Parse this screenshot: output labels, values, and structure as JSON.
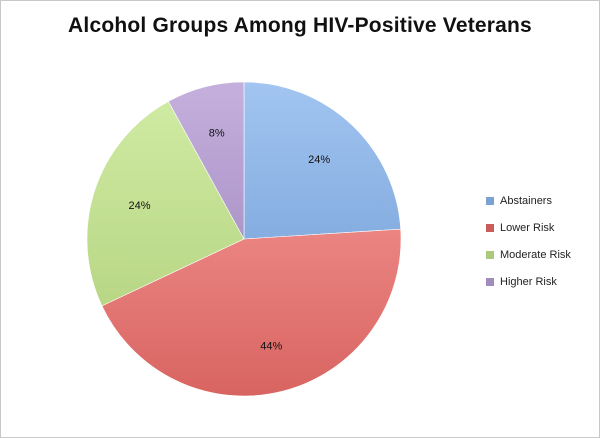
{
  "chart_data": {
    "type": "pie",
    "title": "Alcohol Groups Among HIV-Positive Veterans",
    "series": [
      {
        "name": "Abstainers",
        "value": 24,
        "label": "24%",
        "color": "#8db8ee"
      },
      {
        "name": "Lower Risk",
        "value": 44,
        "label": "44%",
        "color": "#e66a67"
      },
      {
        "name": "Moderate Risk",
        "value": 24,
        "label": "24%",
        "color": "#c4e58d"
      },
      {
        "name": "Higher Risk",
        "value": 8,
        "label": "8%",
        "color": "#b89fd6"
      }
    ],
    "legend_placement": "right"
  }
}
